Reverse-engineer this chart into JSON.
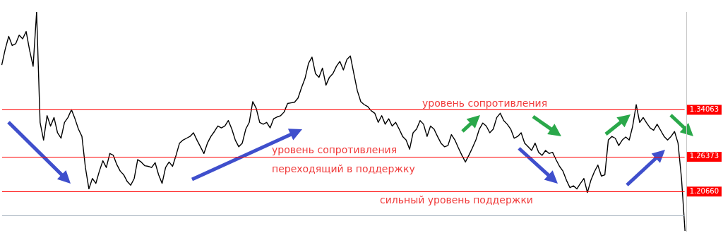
{
  "chart_data": {
    "type": "line",
    "categories": [
      null,
      null,
      null,
      null,
      null,
      null,
      null,
      null,
      null,
      null,
      null,
      null,
      null,
      null,
      null,
      null,
      null,
      null,
      null,
      null,
      null,
      null,
      null,
      null,
      null,
      null,
      null,
      null,
      null,
      null,
      null,
      null,
      null,
      null,
      null,
      null,
      null,
      null,
      null,
      null,
      null,
      null,
      null,
      null,
      null,
      null,
      null,
      null,
      null,
      null,
      null,
      null,
      null,
      null,
      null,
      null,
      null,
      null,
      null,
      null,
      null,
      null,
      null,
      null,
      null,
      null,
      null,
      null,
      null,
      null,
      null,
      null,
      null,
      null,
      null,
      null,
      null,
      null,
      null,
      null,
      null,
      null,
      null,
      null,
      null,
      null,
      null,
      null,
      null,
      null,
      null,
      null,
      null,
      null,
      null,
      null,
      null,
      null,
      null,
      null,
      null,
      null,
      null,
      null,
      null,
      null,
      null,
      null,
      null,
      null,
      null,
      null,
      null,
      null,
      null,
      null,
      null,
      null,
      null,
      null,
      null,
      null,
      null,
      null,
      null,
      null,
      null,
      null,
      null,
      null,
      null,
      null,
      null,
      null,
      null,
      null,
      null,
      null,
      null,
      null,
      null,
      null,
      null,
      null,
      null,
      null,
      null,
      null,
      null,
      null,
      null,
      null,
      null,
      null,
      null,
      null,
      null,
      null,
      null,
      null,
      null,
      null,
      null,
      null,
      null,
      null,
      null,
      null,
      null,
      null,
      null,
      null,
      null,
      null,
      null,
      null,
      null,
      null,
      null,
      null,
      null,
      null,
      null,
      null,
      null,
      null,
      null,
      null,
      null,
      null,
      null,
      null,
      null,
      null,
      null,
      null,
      null
    ],
    "series": [
      {
        "color": "#000000",
        "values": [
          1.414,
          1.44,
          1.461,
          1.446,
          1.449,
          1.463,
          1.457,
          1.469,
          1.438,
          1.412,
          1.501,
          1.32,
          1.291,
          1.331,
          1.314,
          1.328,
          1.303,
          1.294,
          1.32,
          1.328,
          1.341,
          1.326,
          1.309,
          1.297,
          1.246,
          1.211,
          1.228,
          1.22,
          1.24,
          1.257,
          1.246,
          1.269,
          1.266,
          1.251,
          1.24,
          1.234,
          1.223,
          1.217,
          1.228,
          1.259,
          1.255,
          1.249,
          1.248,
          1.246,
          1.254,
          1.234,
          1.22,
          1.246,
          1.255,
          1.248,
          1.266,
          1.286,
          1.291,
          1.294,
          1.297,
          1.303,
          1.291,
          1.28,
          1.269,
          1.286,
          1.297,
          1.305,
          1.314,
          1.311,
          1.314,
          1.323,
          1.309,
          1.291,
          1.28,
          1.286,
          1.309,
          1.32,
          1.354,
          1.343,
          1.32,
          1.317,
          1.32,
          1.311,
          1.326,
          1.329,
          1.331,
          1.337,
          1.351,
          1.352,
          1.353,
          1.36,
          1.377,
          1.392,
          1.417,
          1.427,
          1.4,
          1.394,
          1.409,
          1.381,
          1.394,
          1.4,
          1.412,
          1.42,
          1.406,
          1.423,
          1.429,
          1.4,
          1.372,
          1.354,
          1.349,
          1.346,
          1.339,
          1.335,
          1.32,
          1.331,
          1.317,
          1.326,
          1.314,
          1.32,
          1.309,
          1.297,
          1.291,
          1.276,
          1.303,
          1.309,
          1.323,
          1.317,
          1.297,
          1.314,
          1.309,
          1.297,
          1.286,
          1.28,
          1.282,
          1.3,
          1.291,
          1.278,
          1.266,
          1.255,
          1.266,
          1.278,
          1.291,
          1.309,
          1.319,
          1.314,
          1.303,
          1.309,
          1.328,
          1.335,
          1.323,
          1.317,
          1.309,
          1.294,
          1.297,
          1.303,
          1.286,
          1.28,
          1.274,
          1.286,
          1.271,
          1.266,
          1.274,
          1.269,
          1.271,
          1.259,
          1.248,
          1.24,
          1.225,
          1.213,
          1.216,
          1.211,
          1.22,
          1.228,
          1.205,
          1.225,
          1.239,
          1.25,
          1.232,
          1.234,
          1.291,
          1.297,
          1.294,
          1.282,
          1.291,
          1.296,
          1.291,
          1.314,
          1.349,
          1.32,
          1.328,
          1.319,
          1.311,
          1.307,
          1.317,
          1.307,
          1.297,
          1.291,
          1.297,
          1.305,
          1.286,
          1.228,
          1.142
        ]
      }
    ],
    "ylim": [
      1.142,
      1.501
    ],
    "yticks": [
      {
        "value": 1.2066,
        "label": "1.20660"
      },
      {
        "value": 1.26373,
        "label": "1.26373"
      },
      {
        "value": 1.34063,
        "label": "1.34063"
      }
    ],
    "tick_labels": "y",
    "grid": false,
    "legend": false,
    "marker": "none",
    "line_style": "solid",
    "ref_lines": [
      {
        "axis": "y",
        "value": 1.34063,
        "color": "#ff0000"
      },
      {
        "axis": "y",
        "value": 1.26373,
        "color": "#ff0000"
      },
      {
        "axis": "y",
        "value": 1.2066,
        "color": "#ff0000"
      },
      {
        "axis": "y",
        "value": 1.168,
        "color": "#a8b4c0"
      }
    ],
    "annotations": [
      "уровень сопротивления",
      "уровень сопротивления",
      "переходящий в поддержку",
      "сильный уровень поддержки"
    ]
  }
}
